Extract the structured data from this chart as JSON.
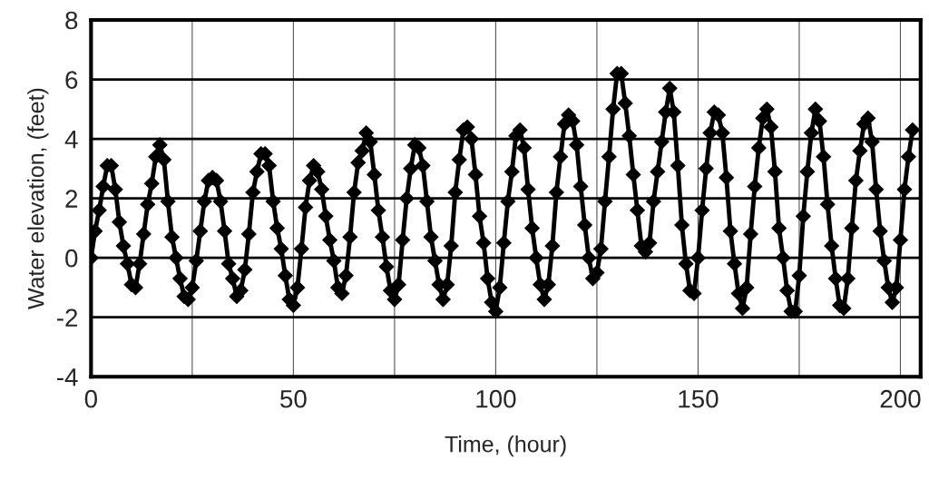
{
  "chart_data": {
    "type": "line",
    "xlabel": "Time, (hour)",
    "ylabel": "Water elevation, (feet)",
    "xlim": [
      0,
      205
    ],
    "ylim": [
      -4,
      8
    ],
    "xticks": [
      0,
      {
        "value": 25,
        "label": null
      },
      50,
      {
        "value": 75,
        "label": null
      },
      100,
      {
        "value": 125,
        "label": null
      },
      150,
      {
        "value": 175,
        "label": null
      },
      200
    ],
    "yticks": [
      -4,
      -2,
      0,
      2,
      4,
      6,
      8
    ],
    "grid": true,
    "marker": "diamond",
    "line_style": "solid",
    "series": [
      {
        "color": "#000000",
        "x": [
          0,
          1,
          2,
          3,
          4,
          5,
          6,
          7,
          8,
          9,
          10,
          11,
          12,
          13,
          14,
          15,
          16,
          17,
          18,
          19,
          20,
          21,
          22,
          23,
          24,
          25,
          26,
          27,
          28,
          29,
          30,
          31,
          32,
          33,
          34,
          35,
          36,
          37,
          38,
          39,
          40,
          41,
          42,
          43,
          44,
          45,
          46,
          47,
          48,
          49,
          50,
          51,
          52,
          53,
          54,
          55,
          56,
          57,
          58,
          59,
          60,
          61,
          62,
          63,
          64,
          65,
          66,
          67,
          68,
          69,
          70,
          71,
          72,
          73,
          74,
          75,
          76,
          77,
          78,
          79,
          80,
          81,
          82,
          83,
          84,
          85,
          86,
          87,
          88,
          89,
          90,
          91,
          92,
          93,
          94,
          95,
          96,
          97,
          98,
          99,
          100,
          101,
          102,
          103,
          104,
          105,
          106,
          107,
          108,
          109,
          110,
          111,
          112,
          113,
          114,
          115,
          116,
          117,
          118,
          119,
          120,
          121,
          122,
          123,
          124,
          125,
          126,
          127,
          128,
          129,
          130,
          131,
          132,
          133,
          134,
          135,
          136,
          137,
          138,
          139,
          140,
          141,
          142,
          143,
          144,
          145,
          146,
          147,
          148,
          149,
          150,
          151,
          152,
          153,
          154,
          155,
          156,
          157,
          158,
          159,
          160,
          161,
          162,
          163,
          164,
          165,
          166,
          167,
          168,
          169,
          170,
          171,
          172,
          173,
          174,
          175,
          176,
          177,
          178,
          179,
          180,
          181,
          182,
          183,
          184,
          185,
          186,
          187,
          188,
          189,
          190,
          191,
          192,
          193,
          194,
          195,
          196,
          197,
          198,
          199,
          200,
          201,
          202,
          203
        ],
        "values": [
          0,
          0.9,
          1.6,
          2.4,
          3.1,
          3.1,
          2.3,
          1.2,
          0.4,
          -0.2,
          -0.9,
          -1.0,
          -0.2,
          0.8,
          1.8,
          2.5,
          3.4,
          3.8,
          3.3,
          1.9,
          0.7,
          0.0,
          -0.7,
          -1.3,
          -1.4,
          -1.0,
          -0.1,
          0.9,
          1.9,
          2.6,
          2.7,
          2.6,
          1.9,
          0.9,
          -0.2,
          -0.7,
          -1.3,
          -1.1,
          -0.4,
          0.8,
          2.2,
          2.9,
          3.5,
          3.5,
          3.1,
          1.9,
          1.0,
          0.3,
          -0.6,
          -1.4,
          -1.6,
          -1.0,
          0.3,
          1.7,
          2.6,
          3.1,
          2.9,
          2.3,
          1.4,
          0.6,
          -0.1,
          -1.0,
          -1.2,
          -0.6,
          0.7,
          2.2,
          3.2,
          3.6,
          4.2,
          3.9,
          2.8,
          1.6,
          0.7,
          -0.3,
          -1.1,
          -1.4,
          -0.9,
          0.6,
          2.0,
          3.0,
          3.8,
          3.7,
          3.1,
          1.9,
          0.7,
          -0.1,
          -0.9,
          -1.4,
          -0.9,
          0.4,
          2.2,
          3.3,
          4.3,
          4.4,
          4.0,
          2.8,
          1.4,
          0.5,
          -0.7,
          -1.5,
          -1.8,
          -1.0,
          0.5,
          1.9,
          2.9,
          4.1,
          4.3,
          3.7,
          2.3,
          1.0,
          0.0,
          -0.9,
          -1.4,
          -0.9,
          0.4,
          2.2,
          3.4,
          4.5,
          4.8,
          4.6,
          3.8,
          2.4,
          1.1,
          0.0,
          -0.7,
          -0.5,
          0.3,
          1.9,
          3.4,
          5.0,
          6.2,
          6.2,
          5.2,
          4.1,
          2.8,
          1.6,
          0.4,
          0.2,
          0.5,
          1.9,
          2.9,
          3.9,
          4.9,
          5.7,
          4.9,
          3.1,
          1.1,
          -0.2,
          -1.1,
          -1.2,
          0.0,
          1.6,
          3.0,
          4.2,
          4.9,
          4.8,
          4.2,
          2.7,
          0.9,
          -0.2,
          -1.2,
          -1.7,
          -1.0,
          0.8,
          2.4,
          3.7,
          4.7,
          5.0,
          4.4,
          2.9,
          1.0,
          0.0,
          -1.1,
          -1.8,
          -1.8,
          -0.6,
          1.4,
          2.9,
          4.2,
          5.0,
          4.6,
          3.4,
          1.8,
          0.4,
          -0.7,
          -1.6,
          -1.7,
          -0.7,
          1.0,
          2.6,
          3.6,
          4.5,
          4.7,
          3.9,
          2.3,
          0.9,
          -0.1,
          -1.0,
          -1.5,
          -1.0,
          0.6,
          2.3,
          3.4,
          4.3
        ]
      }
    ]
  }
}
